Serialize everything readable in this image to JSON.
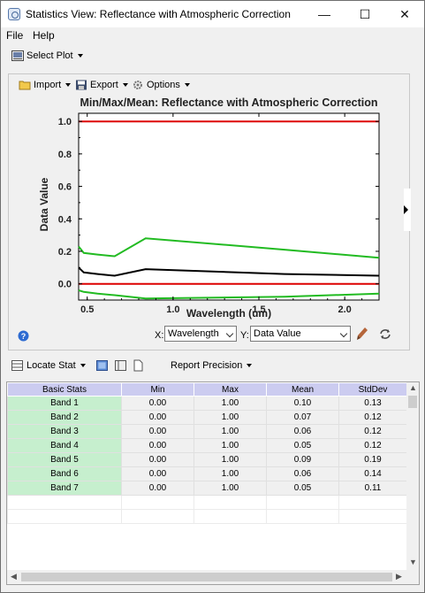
{
  "window": {
    "title": "Statistics View: Reflectance with Atmospheric Correction",
    "minimize": "—",
    "maximize": "☐",
    "close": "✕"
  },
  "menu": {
    "file": "File",
    "help": "Help"
  },
  "toolbar": {
    "select_plot": "Select Plot"
  },
  "plot_toolbar": {
    "import": "Import",
    "export": "Export",
    "options": "Options"
  },
  "chart_data": {
    "type": "line",
    "title": "Min/Max/Mean: Reflectance with Atmospheric Correction",
    "xlabel": "Wavelength (um)",
    "ylabel": "Data Value",
    "xlim": [
      0.45,
      2.2
    ],
    "ylim": [
      -0.1,
      1.05
    ],
    "xticks": [
      0.5,
      1.0,
      1.5,
      2.0
    ],
    "xtick_labels": [
      "0.5",
      "1.0",
      "1.5",
      "2.0"
    ],
    "yticks": [
      0.0,
      0.2,
      0.4,
      0.6,
      0.8,
      1.0
    ],
    "ytick_labels": [
      "0.0",
      "0.2",
      "0.4",
      "0.6",
      "0.8",
      "1.0"
    ],
    "grid": false,
    "series": [
      {
        "color": "#dd0000",
        "x": [
          0.45,
          2.2
        ],
        "y": [
          1.0,
          1.0
        ]
      },
      {
        "color": "#dd0000",
        "x": [
          0.45,
          2.2
        ],
        "y": [
          0.0,
          0.0
        ]
      },
      {
        "color": "#22bb22",
        "x": [
          0.45,
          0.48,
          0.56,
          0.66,
          0.84,
          1.65,
          2.2
        ],
        "y": [
          0.23,
          0.19,
          0.18,
          0.17,
          0.28,
          0.21,
          0.16
        ]
      },
      {
        "color": "#000000",
        "x": [
          0.45,
          0.48,
          0.56,
          0.66,
          0.84,
          1.65,
          2.2
        ],
        "y": [
          0.1,
          0.07,
          0.06,
          0.05,
          0.09,
          0.06,
          0.05
        ]
      },
      {
        "color": "#22bb22",
        "x": [
          0.45,
          0.48,
          0.56,
          0.66,
          0.84,
          1.65,
          2.2
        ],
        "y": [
          -0.04,
          -0.05,
          -0.06,
          -0.07,
          -0.09,
          -0.08,
          -0.06
        ]
      }
    ]
  },
  "axis_controls": {
    "x_label": "X:",
    "x_value": "Wavelength",
    "y_label": "Y:",
    "y_value": "Data Value"
  },
  "stats_toolbar": {
    "locate_stat": "Locate Stat",
    "report_precision": "Report Precision"
  },
  "table": {
    "headers": [
      "Basic Stats",
      "Min",
      "Max",
      "Mean",
      "StdDev"
    ],
    "rows": [
      [
        "Band 1",
        "0.00",
        "1.00",
        "0.10",
        "0.13"
      ],
      [
        "Band 2",
        "0.00",
        "1.00",
        "0.07",
        "0.12"
      ],
      [
        "Band 3",
        "0.00",
        "1.00",
        "0.06",
        "0.12"
      ],
      [
        "Band 4",
        "0.00",
        "1.00",
        "0.05",
        "0.12"
      ],
      [
        "Band 5",
        "0.00",
        "1.00",
        "0.09",
        "0.19"
      ],
      [
        "Band 6",
        "0.00",
        "1.00",
        "0.06",
        "0.14"
      ],
      [
        "Band 7",
        "0.00",
        "1.00",
        "0.05",
        "0.11"
      ]
    ]
  }
}
